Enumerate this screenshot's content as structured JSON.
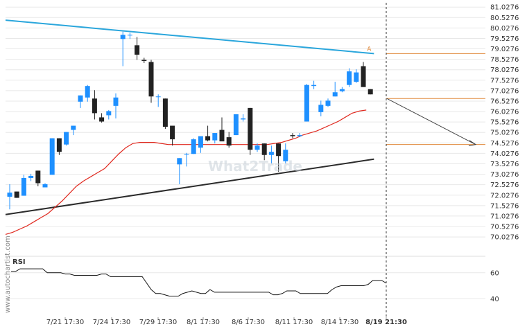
{
  "chart_data": {
    "type": "candlestick",
    "y_ticks": [
      "81.0276",
      "80.5276",
      "80.0276",
      "79.5276",
      "79.0276",
      "78.5276",
      "78.0276",
      "77.5276",
      "77.0276",
      "76.5276",
      "76.0276",
      "75.5276",
      "75.0276",
      "74.5276",
      "74.0276",
      "73.5276",
      "73.0276",
      "72.5276",
      "72.0276",
      "71.5276",
      "71.0276",
      "70.5276",
      "70.0276"
    ],
    "ylim": [
      69.6,
      81.2
    ],
    "x_labels": [
      "7/21 17:30",
      "7/24 17:30",
      "7/29 17:30",
      "8/1 17:30",
      "8/6 17:30",
      "8/11 17:30",
      "8/14 17:30",
      "8/19 21:30"
    ],
    "x_label_bold_index": 7,
    "candles": [
      [
        71.95,
        72.55,
        71.35,
        72.15
      ],
      [
        72.2,
        72.2,
        71.9,
        71.9
      ],
      [
        72.0,
        73.0,
        72.0,
        72.85
      ],
      [
        72.85,
        73.05,
        72.7,
        72.95
      ],
      [
        73.2,
        73.2,
        72.45,
        72.6
      ],
      [
        72.4,
        72.6,
        72.4,
        72.55
      ],
      [
        73.0,
        74.75,
        73.0,
        74.75
      ],
      [
        74.75,
        74.75,
        73.95,
        74.1
      ],
      [
        74.45,
        75.05,
        74.4,
        75.05
      ],
      [
        75.15,
        75.35,
        74.9,
        75.35
      ],
      [
        76.5,
        76.8,
        76.2,
        76.8
      ],
      [
        76.7,
        77.3,
        76.5,
        77.25
      ],
      [
        76.65,
        77.05,
        75.65,
        75.95
      ],
      [
        75.75,
        75.95,
        75.5,
        75.55
      ],
      [
        75.85,
        76.1,
        75.65,
        76.05
      ],
      [
        76.3,
        76.9,
        75.7,
        76.7
      ],
      [
        79.5,
        79.85,
        78.2,
        79.7
      ],
      [
        79.7,
        79.8,
        79.5,
        79.7
      ],
      [
        79.2,
        79.6,
        78.5,
        78.75
      ],
      [
        78.5,
        78.6,
        78.35,
        78.45
      ],
      [
        78.4,
        78.5,
        76.45,
        76.75
      ],
      [
        76.75,
        76.85,
        76.25,
        76.75
      ],
      [
        76.65,
        76.65,
        75.2,
        75.3
      ],
      [
        75.35,
        75.35,
        74.4,
        74.7
      ],
      [
        73.5,
        73.8,
        72.55,
        73.8
      ],
      [
        74.0,
        74.05,
        73.4,
        74.0
      ],
      [
        74.0,
        74.75,
        74.0,
        74.7
      ],
      [
        74.3,
        74.8,
        74.05,
        74.85
      ],
      [
        74.85,
        75.35,
        74.6,
        74.65
      ],
      [
        74.65,
        75.0,
        74.5,
        75.0
      ],
      [
        75.15,
        75.75,
        74.7,
        74.6
      ],
      [
        74.8,
        75.05,
        74.3,
        74.4
      ],
      [
        74.9,
        75.9,
        74.9,
        75.9
      ],
      [
        75.65,
        75.9,
        75.55,
        75.7
      ],
      [
        76.2,
        76.2,
        73.95,
        74.2
      ],
      [
        74.2,
        74.5,
        74.1,
        74.4
      ],
      [
        74.5,
        74.5,
        73.7,
        73.95
      ],
      [
        73.95,
        74.4,
        73.55,
        74.1
      ],
      [
        74.5,
        74.5,
        73.15,
        73.9
      ],
      [
        73.65,
        74.5,
        73.55,
        74.2
      ],
      [
        74.9,
        75.0,
        74.75,
        74.85
      ],
      [
        74.85,
        75.0,
        74.8,
        74.9
      ],
      [
        75.55,
        77.35,
        75.55,
        77.3
      ],
      [
        77.25,
        77.5,
        77.1,
        77.3
      ],
      [
        76.0,
        76.55,
        75.8,
        76.35
      ],
      [
        76.3,
        76.65,
        76.25,
        76.55
      ],
      [
        76.75,
        77.45,
        76.75,
        76.95
      ],
      [
        77.0,
        77.2,
        76.95,
        77.1
      ],
      [
        77.3,
        78.1,
        77.2,
        77.95
      ],
      [
        77.45,
        78.05,
        77.4,
        77.9
      ],
      [
        78.2,
        78.4,
        77.3,
        77.2
      ],
      [
        77.1,
        77.1,
        76.85,
        76.85
      ]
    ],
    "ma_series": [
      70.15,
      70.25,
      70.4,
      70.55,
      70.75,
      70.95,
      71.15,
      71.45,
      71.75,
      72.1,
      72.45,
      72.7,
      72.9,
      73.1,
      73.3,
      73.65,
      74.0,
      74.3,
      74.5,
      74.55,
      74.55,
      74.55,
      74.5,
      74.45,
      74.45,
      74.45,
      74.45,
      74.45,
      74.45,
      74.45,
      74.45,
      74.45,
      74.45,
      74.45,
      74.45,
      74.45,
      74.45,
      74.45,
      74.5,
      74.55,
      74.65,
      74.75,
      74.9,
      75.0,
      75.1,
      75.25,
      75.4,
      75.55,
      75.75,
      75.95,
      76.05,
      76.1
    ],
    "pattern": {
      "resistance": {
        "from": [
          0,
          80.4
        ],
        "to": [
          51.5,
          78.8
        ]
      },
      "support": {
        "from": [
          0,
          71.1
        ],
        "to": [
          51.5,
          73.75
        ]
      },
      "annotation_label": "A",
      "forecast_from": [
        51.5,
        76.65
      ],
      "forecast_to": [
        62.0,
        74.45
      ],
      "level_lines": [
        78.8,
        76.65,
        74.45
      ]
    },
    "rsi": {
      "label": "RSI",
      "y_ticks": [
        "60",
        "40"
      ],
      "ylim": [
        30,
        70
      ],
      "values": [
        61,
        61,
        63,
        63,
        63,
        63,
        63,
        63,
        60,
        60,
        60,
        60,
        59,
        59,
        58,
        58,
        58,
        58,
        58,
        58,
        59,
        59,
        57,
        57,
        57,
        57,
        57,
        57,
        57,
        57,
        52,
        47,
        44,
        44,
        43,
        42,
        42,
        42,
        44,
        45,
        46,
        45,
        44,
        44,
        47,
        45,
        45,
        45,
        45,
        45,
        45,
        45,
        45,
        45,
        45,
        45,
        45,
        45,
        43,
        43,
        44,
        46,
        46,
        46,
        44,
        44,
        44,
        44,
        44,
        44,
        44,
        47,
        49,
        50,
        50,
        50,
        50,
        50,
        50,
        51,
        54,
        54,
        54,
        52
      ]
    },
    "watermark": "What2Trade",
    "side_watermark": "www.autochartist.com"
  },
  "colors": {
    "bull": "#1e90ff",
    "bear": "#222222",
    "resistance": "#2aa6dc",
    "support": "#2b2b2b",
    "ma": "#e0281e",
    "level": "#e08a3c",
    "forecast": "#444444",
    "grid": "#e8e8e8"
  }
}
